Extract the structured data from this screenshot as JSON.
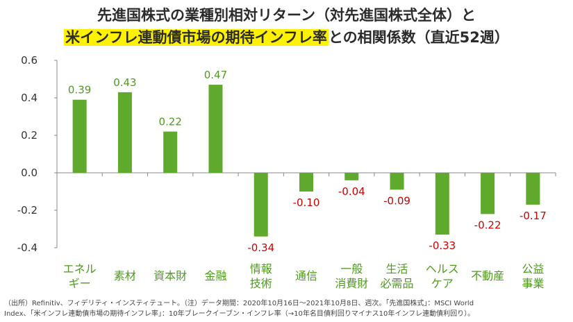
{
  "title": {
    "line1": "先進国株式の業種別相対リターン（対先進国株式全体）と",
    "line2_highlight": "米インフレ連動債市場の期待インフレ率",
    "line2_rest": "との相関係数（直近52週）"
  },
  "chart_data": {
    "type": "bar",
    "categories": [
      [
        "エネル",
        "ギー"
      ],
      [
        "素材"
      ],
      [
        "資本財"
      ],
      [
        "金融"
      ],
      [
        "情報",
        "技術"
      ],
      [
        "通信"
      ],
      [
        "一般",
        "消費財"
      ],
      [
        "生活",
        "必需品"
      ],
      [
        "ヘルス",
        "ケア"
      ],
      [
        "不動産"
      ],
      [
        "公益",
        "事業"
      ]
    ],
    "values": [
      0.39,
      0.43,
      0.22,
      0.47,
      -0.34,
      -0.1,
      -0.04,
      -0.09,
      -0.33,
      -0.22,
      -0.17
    ],
    "value_labels": [
      "0.39",
      "0.43",
      "0.22",
      "0.47",
      "-0.34",
      "-0.10",
      "-0.04",
      "-0.09",
      "-0.33",
      "-0.22",
      "-0.17"
    ],
    "yticks": [
      0.6,
      0.4,
      0.2,
      0.0,
      -0.2,
      -0.4
    ],
    "ytick_labels": [
      "0.6",
      "0.4",
      "0.2",
      "0.0",
      "-0.2",
      "-0.4"
    ],
    "ylim": [
      -0.4,
      0.6
    ],
    "grid": false,
    "colors": {
      "bar": "#5fa92d",
      "positive_label": "#4e9a1e",
      "negative_label": "#cc0000",
      "category_label": "#4e9a1e",
      "axis": "#888888"
    }
  },
  "notes": {
    "line1": "（出所）Refinitiv、フィデリティ・インスティテュート。（注）データ期間：2020年10月16日～2021年10月8日、週次。「先進国株式」：MSCI World",
    "line2": "Index、「米インフレ連動債市場の期待インフレ率」：10年ブレークイーブン・インフレ率（→10年名目債利回りマイナス10年インフレ連動債利回り）。"
  }
}
